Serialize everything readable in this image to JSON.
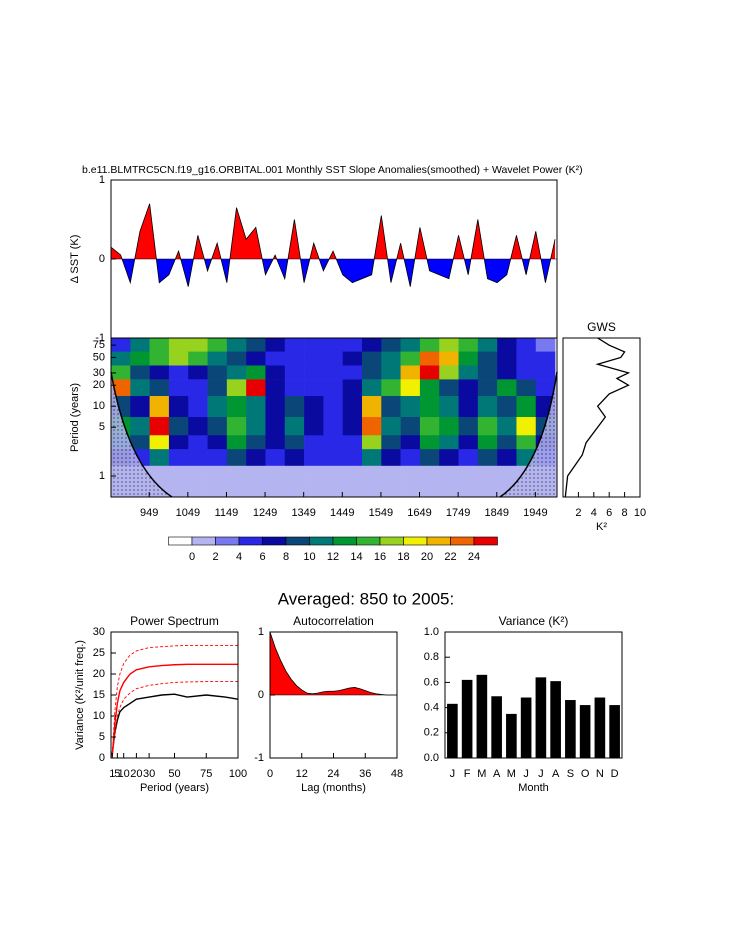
{
  "heading": "Averaged: 850 to 2005:",
  "chart_data": [
    {
      "type": "area",
      "title": "b.e11.BLMTRC5CN.f19_g16.ORBITAL.001 Monthly SST Slope Anomalies(smoothed) + Wavelet Power (K²)",
      "ylabel": "Δ SST (K)",
      "x": [
        850,
        875,
        900,
        925,
        950,
        975,
        1000,
        1025,
        1050,
        1075,
        1100,
        1125,
        1150,
        1175,
        1200,
        1225,
        1250,
        1275,
        1300,
        1325,
        1350,
        1375,
        1400,
        1425,
        1450,
        1475,
        1500,
        1525,
        1550,
        1575,
        1600,
        1625,
        1650,
        1675,
        1700,
        1725,
        1750,
        1775,
        1800,
        1825,
        1850,
        1875,
        1900,
        1925,
        1950,
        1975,
        2000
      ],
      "values": [
        0.15,
        0.05,
        -0.3,
        0.35,
        0.7,
        -0.3,
        -0.2,
        0.1,
        -0.35,
        0.3,
        -0.15,
        0.2,
        -0.3,
        0.65,
        0.25,
        0.4,
        -0.2,
        0.05,
        -0.25,
        0.5,
        -0.3,
        0.2,
        -0.15,
        0.1,
        -0.2,
        -0.3,
        -0.25,
        -0.2,
        0.55,
        -0.3,
        0.2,
        -0.35,
        0.4,
        -0.15,
        -0.2,
        -0.25,
        0.3,
        -0.2,
        0.5,
        -0.25,
        -0.3,
        -0.2,
        0.3,
        -0.2,
        0.35,
        -0.3,
        0.25
      ],
      "color_above": "#ff0000",
      "color_below": "#0000ff",
      "xlim": [
        850,
        2005
      ],
      "ylim": [
        -1,
        1
      ],
      "yticks": [
        -1,
        0,
        1
      ]
    },
    {
      "type": "contour",
      "ylabel": "Period (years)",
      "ylog": true,
      "x": [
        875,
        925,
        975,
        1025,
        1075,
        1125,
        1175,
        1225,
        1275,
        1325,
        1375,
        1425,
        1475,
        1525,
        1575,
        1625,
        1675,
        1725,
        1775,
        1825,
        1875,
        1925,
        1975
      ],
      "y": [
        1,
        2,
        3,
        5,
        10,
        20,
        30,
        50,
        75
      ],
      "z": [
        [
          1,
          1,
          1,
          1,
          1,
          1,
          1,
          1,
          1,
          1,
          1,
          1,
          1,
          1,
          1,
          1,
          1,
          1,
          1,
          1,
          1,
          1,
          1
        ],
        [
          6,
          5,
          10,
          5,
          4,
          5,
          8,
          6,
          5,
          6,
          4,
          4,
          4,
          10,
          6,
          5,
          8,
          7,
          5,
          8,
          6,
          10,
          5
        ],
        [
          10,
          8,
          18,
          6,
          5,
          6,
          12,
          8,
          6,
          9,
          5,
          5,
          5,
          16,
          8,
          6,
          12,
          10,
          6,
          12,
          8,
          14,
          6
        ],
        [
          12,
          10,
          24,
          8,
          6,
          8,
          14,
          10,
          7,
          10,
          6,
          5,
          6,
          22,
          10,
          8,
          14,
          12,
          8,
          14,
          10,
          18,
          8
        ],
        [
          8,
          6,
          20,
          6,
          5,
          10,
          12,
          10,
          6,
          8,
          6,
          5,
          6,
          20,
          8,
          10,
          12,
          10,
          7,
          10,
          8,
          12,
          6
        ],
        [
          22,
          10,
          8,
          4,
          5,
          8,
          16,
          26,
          6,
          5,
          5,
          4,
          6,
          10,
          14,
          18,
          12,
          8,
          7,
          8,
          12,
          8,
          5
        ],
        [
          14,
          8,
          6,
          5,
          6,
          8,
          10,
          12,
          6,
          5,
          4,
          4,
          5,
          8,
          10,
          20,
          26,
          16,
          10,
          8,
          6,
          5,
          4
        ],
        [
          10,
          12,
          14,
          16,
          14,
          10,
          8,
          6,
          5,
          5,
          5,
          5,
          6,
          8,
          10,
          14,
          22,
          20,
          12,
          8,
          6,
          5,
          4
        ],
        [
          4,
          10,
          14,
          16,
          16,
          14,
          10,
          8,
          6,
          5,
          5,
          5,
          5,
          6,
          8,
          10,
          14,
          16,
          14,
          10,
          6,
          4,
          3
        ]
      ],
      "xlim": [
        850,
        2005
      ],
      "ylim": [
        0.5,
        95
      ],
      "xticks": [
        949,
        1049,
        1149,
        1249,
        1349,
        1449,
        1549,
        1649,
        1749,
        1849,
        1949
      ],
      "yticks": [
        1,
        5,
        10,
        20,
        30,
        50,
        75
      ],
      "levels": [
        0,
        2,
        4,
        6,
        8,
        10,
        12,
        14,
        16,
        18,
        20,
        22,
        24
      ],
      "colors": [
        "#ffffff",
        "#b4b4f0",
        "#7878f0",
        "#2828e6",
        "#0a0aa0",
        "#0a4678",
        "#007878",
        "#009632",
        "#32b432",
        "#96d21e",
        "#f0f000",
        "#f0b400",
        "#f06400",
        "#e60000"
      ]
    },
    {
      "type": "profile",
      "title": "GWS",
      "xlabel": "K²",
      "ylog": true,
      "y": [
        0.5,
        1,
        2,
        3,
        5,
        7,
        10,
        15,
        20,
        25,
        30,
        40,
        50,
        60,
        75,
        95
      ],
      "values": [
        0.3,
        0.6,
        2.5,
        3,
        4.5,
        5.5,
        4.5,
        6,
        8.5,
        7,
        8.5,
        4.5,
        7.5,
        8,
        6,
        4.5
      ],
      "color": "#000000",
      "xlim": [
        0,
        10
      ],
      "xticks": [
        2,
        4,
        6,
        8,
        10
      ],
      "ylim": [
        0.5,
        95
      ]
    },
    {
      "type": "line",
      "title": "Power Spectrum",
      "xlabel": "Period (years)",
      "ylabel": "Variance (K²/unit freq.)",
      "x": [
        1,
        3,
        5,
        7,
        10,
        15,
        20,
        30,
        40,
        50,
        60,
        75,
        90,
        100
      ],
      "series": [
        {
          "color": "#000000",
          "dashed": false,
          "values": [
            1,
            6,
            9,
            11,
            12,
            13,
            14,
            14.5,
            15,
            15.2,
            14.5,
            15,
            14.5,
            14
          ]
        },
        {
          "color": "#ff0000",
          "dashed": false,
          "values": [
            0.5,
            8,
            13,
            16,
            18,
            20,
            21,
            21.7,
            22,
            22.2,
            22.3,
            22.3,
            22.3,
            22.3
          ]
        },
        {
          "color": "#ff0000",
          "dashed": true,
          "values": [
            0.7,
            11,
            17,
            20,
            22.5,
            24.5,
            25.5,
            26.3,
            26.5,
            26.7,
            26.8,
            26.8,
            26.8,
            26.8
          ]
        },
        {
          "color": "#ff0000",
          "dashed": true,
          "values": [
            0.3,
            6,
            10,
            12,
            14,
            15.5,
            16.5,
            17.3,
            17.7,
            18,
            18.1,
            18.2,
            18.2,
            18.2
          ]
        }
      ],
      "xlim": [
        0,
        100
      ],
      "xticks": [
        1,
        5,
        10,
        20,
        30,
        50,
        75,
        100
      ],
      "ylim": [
        0,
        30
      ],
      "yticks": [
        0,
        5,
        10,
        15,
        20,
        25,
        30
      ]
    },
    {
      "type": "area",
      "title": "Autocorrelation",
      "xlabel": "Lag (months)",
      "x": [
        0,
        2,
        4,
        6,
        8,
        10,
        12,
        14,
        16,
        18,
        20,
        22,
        24,
        26,
        28,
        30,
        32,
        34,
        36,
        38,
        40,
        42,
        44,
        46,
        48
      ],
      "values": [
        1,
        0.75,
        0.55,
        0.38,
        0.25,
        0.15,
        0.08,
        0.03,
        0.02,
        0.03,
        0.05,
        0.06,
        0.06,
        0.07,
        0.09,
        0.11,
        0.12,
        0.1,
        0.07,
        0.04,
        0.02,
        0.01,
        0,
        0,
        0
      ],
      "color_above": "#ff0000",
      "xlim": [
        0,
        48
      ],
      "xticks": [
        0,
        12,
        24,
        36,
        48
      ],
      "ylim": [
        -1,
        1
      ],
      "yticks": [
        -1,
        0,
        1
      ]
    },
    {
      "type": "bar",
      "title": "Variance (K²)",
      "xlabel": "Month",
      "categories": [
        "J",
        "F",
        "M",
        "A",
        "M",
        "J",
        "J",
        "A",
        "S",
        "O",
        "N",
        "D"
      ],
      "values": [
        0.43,
        0.62,
        0.66,
        0.49,
        0.35,
        0.48,
        0.64,
        0.61,
        0.46,
        0.42,
        0.48,
        0.42
      ],
      "color": "#000000",
      "ylim": [
        0,
        1
      ],
      "yticks": [
        {
          "value": 0,
          "label": "0.0"
        },
        0.2,
        0.4,
        0.6,
        0.8,
        {
          "value": 1,
          "label": "1.0"
        }
      ]
    }
  ]
}
